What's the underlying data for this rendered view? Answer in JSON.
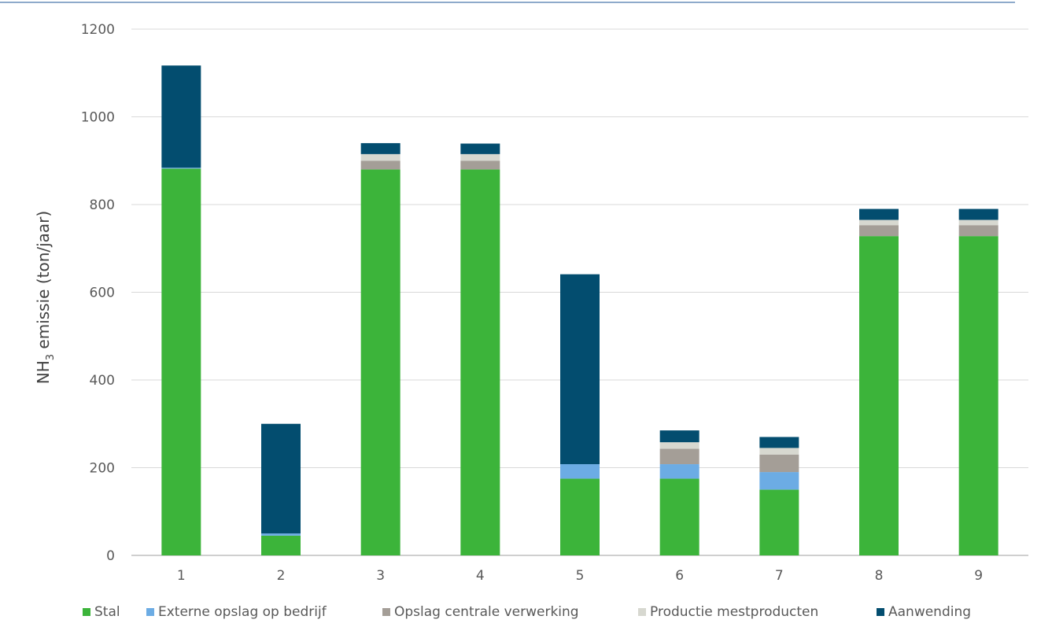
{
  "chart_data": {
    "type": "bar",
    "stacked": true,
    "categories": [
      "1",
      "2",
      "3",
      "4",
      "5",
      "6",
      "7",
      "8",
      "9"
    ],
    "ylabel_main": "NH",
    "ylabel_sub": "3",
    "ylabel_rest": " emissie (ton/jaar)",
    "ylim": [
      0,
      1200
    ],
    "yticks": [
      "0",
      "200",
      "400",
      "600",
      "800",
      "1000",
      "1200"
    ],
    "grid": true,
    "legend_position": "bottom",
    "series": [
      {
        "name": "Stal",
        "color": "#3cb43a",
        "values": [
          882,
          45,
          880,
          880,
          175,
          175,
          150,
          728,
          728
        ]
      },
      {
        "name": "Externe opslag op bedrijf",
        "color": "#6cace4",
        "values": [
          2,
          5,
          0,
          0,
          33,
          33,
          40,
          0,
          0
        ]
      },
      {
        "name": "Opslag centrale verwerking",
        "color": "#a49e97",
        "values": [
          0,
          0,
          20,
          20,
          0,
          35,
          40,
          25,
          25
        ]
      },
      {
        "name": "Productie mestproducten",
        "color": "#d7d8d0",
        "values": [
          0,
          0,
          15,
          15,
          0,
          15,
          15,
          12,
          12
        ]
      },
      {
        "name": "Aanwending",
        "color": "#034d6f",
        "values": [
          233,
          250,
          25,
          24,
          433,
          27,
          25,
          25,
          25
        ]
      }
    ]
  }
}
